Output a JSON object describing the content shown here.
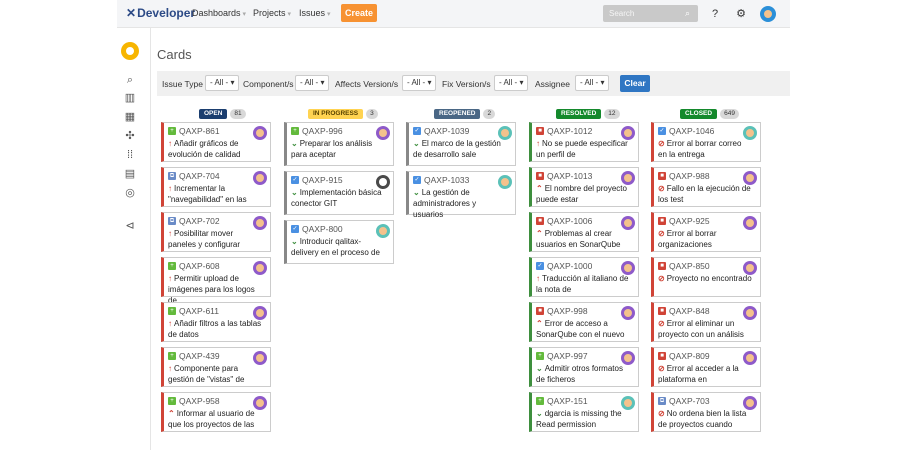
{
  "nav": {
    "logo": "Developer",
    "items": [
      "Dashboards",
      "Projects",
      "Issues"
    ],
    "create": "Create",
    "search_placeholder": "Search"
  },
  "page": {
    "title": "Cards"
  },
  "filters": {
    "issue_type": {
      "label": "Issue Type",
      "value": "- All -"
    },
    "components": {
      "label": "Component/s",
      "value": "- All -"
    },
    "affects": {
      "label": "Affects Version/s",
      "value": "- All -"
    },
    "fix": {
      "label": "Fix Version/s",
      "value": "- All -"
    },
    "assignee": {
      "label": "Assignee",
      "value": "- All -"
    },
    "clear": "Clear"
  },
  "columns": [
    {
      "status": "OPEN",
      "count": "81",
      "badge_bg": "#1b3e6f",
      "badge_fg": "#ffffff",
      "cards": [
        {
          "key": "QAXP-861",
          "type": "story",
          "pri": "↑",
          "summary": "Añadir gráficos de evolución de calidad",
          "avatar": "purple"
        },
        {
          "key": "QAXP-704",
          "type": "subtask",
          "pri": "↑",
          "summary": "Incrementar la \"navegabilidad\" en las",
          "avatar": "purple"
        },
        {
          "key": "QAXP-702",
          "type": "subtask",
          "pri": "↑",
          "summary": "Posibilitar mover paneles y configurar",
          "avatar": "purple"
        },
        {
          "key": "QAXP-608",
          "type": "story",
          "pri": "↑",
          "summary": "Permitir upload de imágenes para los logos de",
          "avatar": "purple"
        },
        {
          "key": "QAXP-611",
          "type": "story",
          "pri": "↑",
          "summary": "Añadir filtros a las tablas de datos",
          "avatar": "purple"
        },
        {
          "key": "QAXP-439",
          "type": "story",
          "pri": "↑",
          "summary": "Componente para gestión de \"vistas\" de",
          "avatar": "purple"
        },
        {
          "key": "QAXP-958",
          "type": "story",
          "pri": "⌃",
          "summary": "Informar al usuario de que los proyectos de las",
          "avatar": "purple"
        }
      ]
    },
    {
      "status": "IN PROGRESS",
      "count": "3",
      "badge_bg": "#ffd351",
      "badge_fg": "#594300",
      "cards": [
        {
          "key": "QAXP-996",
          "type": "story",
          "pri": "⌄",
          "summary": "Preparar los análisis para aceptar",
          "avatar": "purple"
        },
        {
          "key": "QAXP-915",
          "type": "task",
          "pri": "⌄",
          "summary": "Implementación básica conector GIT",
          "avatar": "dark"
        },
        {
          "key": "QAXP-800",
          "type": "task",
          "pri": "⌄",
          "summary": "Introducir qalitax-delivery en el proceso de",
          "avatar": "teal"
        }
      ]
    },
    {
      "status": "REOPENED",
      "count": "2",
      "badge_bg": "#4a6785",
      "badge_fg": "#ffffff",
      "cards": [
        {
          "key": "QAXP-1039",
          "type": "task",
          "pri": "⌄",
          "summary": "El marco de la gestión de desarrollo sale",
          "avatar": "teal"
        },
        {
          "key": "QAXP-1033",
          "type": "task",
          "pri": "⌄",
          "summary": "La gestión de administradores y usuarios",
          "avatar": "teal"
        }
      ]
    },
    {
      "status": "RESOLVED",
      "count": "12",
      "badge_bg": "#14892c",
      "badge_fg": "#ffffff",
      "cards": [
        {
          "key": "QAXP-1012",
          "type": "bug",
          "pri": "↑",
          "summary": "No se puede especificar un perfil de",
          "avatar": "purple"
        },
        {
          "key": "QAXP-1013",
          "type": "bug",
          "pri": "⌃",
          "summary": "El nombre del proyecto puede estar",
          "avatar": "purple"
        },
        {
          "key": "QAXP-1006",
          "type": "bug",
          "pri": "⌃",
          "summary": "Problemas al crear usuarios en SonarQube",
          "avatar": "purple"
        },
        {
          "key": "QAXP-1000",
          "type": "task",
          "pri": "↑",
          "summary": "Traducción al italiano de la nota de",
          "avatar": "purple"
        },
        {
          "key": "QAXP-998",
          "type": "bug",
          "pri": "⌃",
          "summary": "Error de acceso a SonarQube con el nuevo",
          "avatar": "purple"
        },
        {
          "key": "QAXP-997",
          "type": "story",
          "pri": "⌄",
          "summary": "Admitir otros formatos de ficheros",
          "avatar": "purple"
        },
        {
          "key": "QAXP-151",
          "type": "story",
          "pri": "⌄",
          "summary": "dgarcia is missing the Read permission",
          "avatar": "teal"
        }
      ]
    },
    {
      "status": "CLOSED",
      "count": "649",
      "badge_bg": "#14892c",
      "badge_fg": "#ffffff",
      "cards": [
        {
          "key": "QAXP-1046",
          "type": "task",
          "pri": "⊘",
          "summary": "Error al borrar correo en la entrega",
          "avatar": "teal"
        },
        {
          "key": "QAXP-988",
          "type": "bug",
          "pri": "⊘",
          "summary": "Fallo en la ejecución de los test",
          "avatar": "purple"
        },
        {
          "key": "QAXP-925",
          "type": "bug",
          "pri": "⊘",
          "summary": "Error al borrar organizaciones",
          "avatar": "purple"
        },
        {
          "key": "QAXP-850",
          "type": "bug",
          "pri": "⊘",
          "summary": "Proyecto no encontrado",
          "avatar": "purple"
        },
        {
          "key": "QAXP-848",
          "type": "bug",
          "pri": "⊘",
          "summary": "Error al eliminar un proyecto con un análisis",
          "avatar": "purple"
        },
        {
          "key": "QAXP-809",
          "type": "bug",
          "pri": "⊘",
          "summary": "Error al acceder a la plataforma en",
          "avatar": "purple"
        },
        {
          "key": "QAXP-703",
          "type": "subtask",
          "pri": "⊘",
          "summary": "No ordena bien la lista de proyectos cuando",
          "avatar": "purple"
        }
      ]
    }
  ]
}
